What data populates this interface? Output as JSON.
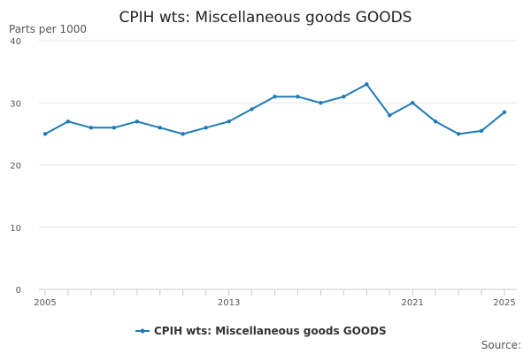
{
  "chart_data": {
    "type": "line",
    "title": "CPIH wts: Miscellaneous goods GOODS",
    "units_label": "Parts per 1000",
    "source_label": "Source:",
    "ylim": [
      0,
      40
    ],
    "y_ticks": [
      0,
      10,
      20,
      30,
      40
    ],
    "xlim": [
      2005,
      2025
    ],
    "x_tick_labels": [
      "2005",
      "2013",
      "2021",
      "2025"
    ],
    "grid": true,
    "legend_position": "bottom",
    "colors": {
      "series": "#1f7ab5",
      "grid": "#e6e6e6",
      "axis": "#cccccc"
    },
    "x": [
      2005,
      2006,
      2007,
      2008,
      2009,
      2010,
      2011,
      2012,
      2013,
      2014,
      2015,
      2016,
      2017,
      2018,
      2019,
      2020,
      2021,
      2022,
      2023,
      2024,
      2025
    ],
    "series": [
      {
        "name": "CPIH wts: Miscellaneous goods GOODS",
        "values": [
          25,
          27,
          26,
          26,
          27,
          26,
          25,
          26,
          27,
          29,
          31,
          31,
          30,
          31,
          33,
          28,
          30,
          27,
          25,
          25.5,
          28.5
        ]
      }
    ]
  }
}
